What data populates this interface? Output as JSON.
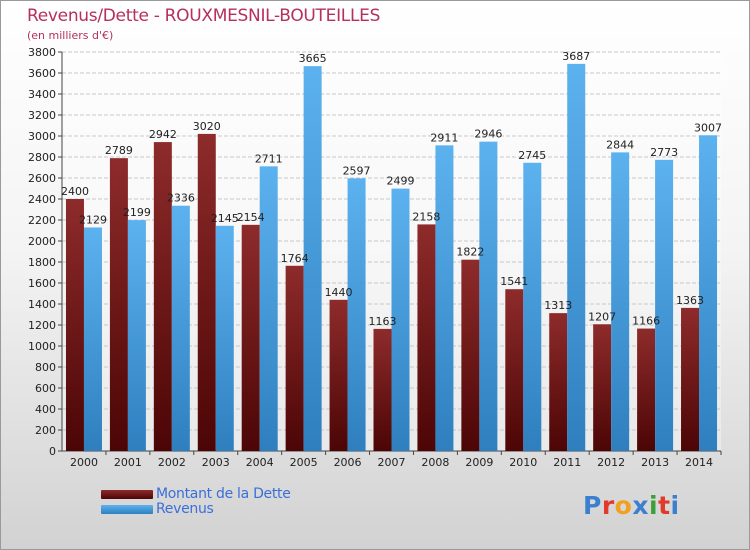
{
  "header": {
    "title": "Revenus/Dette - ROUXMESNIL-BOUTEILLES",
    "subtitle": "(en milliers d'€)"
  },
  "legend": {
    "dette_label": "Montant de la Dette",
    "revenus_label": "Revenus"
  },
  "logo": {
    "letters": [
      "P",
      "r",
      "o",
      "x",
      "i",
      "t",
      "i"
    ]
  },
  "colors": {
    "dette": "#7a1a1a",
    "revenus": "#4aa0e0",
    "title": "#b5305a",
    "legend_text": "#3a6fd8",
    "logo": [
      "#3a7fd0",
      "#e23a2a",
      "#f2a020",
      "#3a7fd0",
      "#3aa03a",
      "#e23a2a",
      "#3a7fd0"
    ]
  },
  "chart_data": {
    "type": "bar",
    "title": "Revenus/Dette - ROUXMESNIL-BOUTEILLES",
    "subtitle": "(en milliers d'€)",
    "categories": [
      "2000",
      "2001",
      "2002",
      "2003",
      "2004",
      "2005",
      "2006",
      "2007",
      "2008",
      "2009",
      "2010",
      "2011",
      "2012",
      "2013",
      "2014"
    ],
    "series": [
      {
        "name": "Montant de la Dette",
        "values": [
          2400,
          2789,
          2942,
          3020,
          2154,
          1764,
          1440,
          1163,
          2158,
          1822,
          1541,
          1313,
          1207,
          1166,
          1363
        ],
        "labels": [
          "2400",
          "2789",
          "2942",
          "3020",
          "2154",
          "1764",
          "1440",
          "1163",
          "2158",
          "1822",
          "1541",
          "1313",
          "1207",
          "1166",
          "1363"
        ]
      },
      {
        "name": "Revenus",
        "values": [
          2129,
          2199,
          2336,
          2145,
          2711,
          3665,
          2597,
          2499,
          2911,
          2946,
          2745,
          3687,
          2844,
          2773,
          3007
        ],
        "labels": [
          "2129",
          "2199",
          "2336",
          "2145",
          "2711",
          "3665",
          "2597",
          "2499",
          "2911",
          "2946",
          "2745",
          "3687",
          "2844",
          "2773",
          "3007"
        ]
      }
    ],
    "ylim": [
      0,
      3800
    ],
    "ytick_step": 200,
    "yticks": [
      "0",
      "200",
      "400",
      "600",
      "800",
      "1000",
      "1200",
      "1400",
      "1600",
      "1800",
      "2000",
      "2200",
      "2400",
      "2600",
      "2800",
      "3000",
      "3200",
      "3400",
      "3600",
      "3800"
    ],
    "xlabel": "",
    "ylabel": "",
    "grid": true,
    "legend_position": "bottom-left"
  }
}
